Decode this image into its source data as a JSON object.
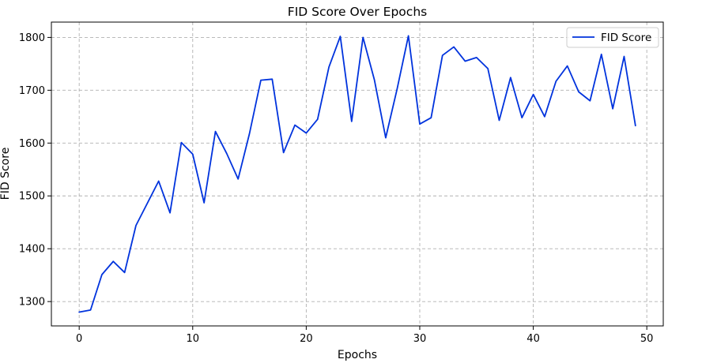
{
  "chart_data": {
    "type": "line",
    "title": "FID Score Over Epochs",
    "xlabel": "Epochs",
    "ylabel": "FID Score",
    "xlim": [
      -2.45,
      51.45
    ],
    "ylim": [
      1253.9,
      1829
    ],
    "xticks": [
      0,
      10,
      20,
      30,
      40,
      50
    ],
    "yticks": [
      1300,
      1400,
      1500,
      1600,
      1700,
      1800
    ],
    "grid": true,
    "legend_position": "top-right",
    "series": [
      {
        "name": "FID Score",
        "color": "#0033dd",
        "x": [
          0,
          1,
          2,
          3,
          4,
          5,
          6,
          7,
          8,
          9,
          10,
          11,
          12,
          13,
          14,
          15,
          16,
          17,
          18,
          19,
          20,
          21,
          22,
          23,
          24,
          25,
          26,
          27,
          28,
          29,
          30,
          31,
          32,
          33,
          34,
          35,
          36,
          37,
          38,
          39,
          40,
          41,
          42,
          43,
          44,
          45,
          46,
          47,
          48,
          49
        ],
        "y": [
          1280,
          1284,
          1351,
          1376,
          1355,
          1444,
          1486,
          1528,
          1468,
          1601,
          1579,
          1487,
          1622,
          1580,
          1532,
          1618,
          1719,
          1721,
          1582,
          1634,
          1619,
          1645,
          1744,
          1802,
          1641,
          1800,
          1720,
          1610,
          1702,
          1803,
          1636,
          1648,
          1766,
          1782,
          1755,
          1762,
          1741,
          1643,
          1724,
          1648,
          1692,
          1650,
          1717,
          1746,
          1697,
          1680,
          1768,
          1665,
          1764,
          1633
        ]
      }
    ]
  }
}
